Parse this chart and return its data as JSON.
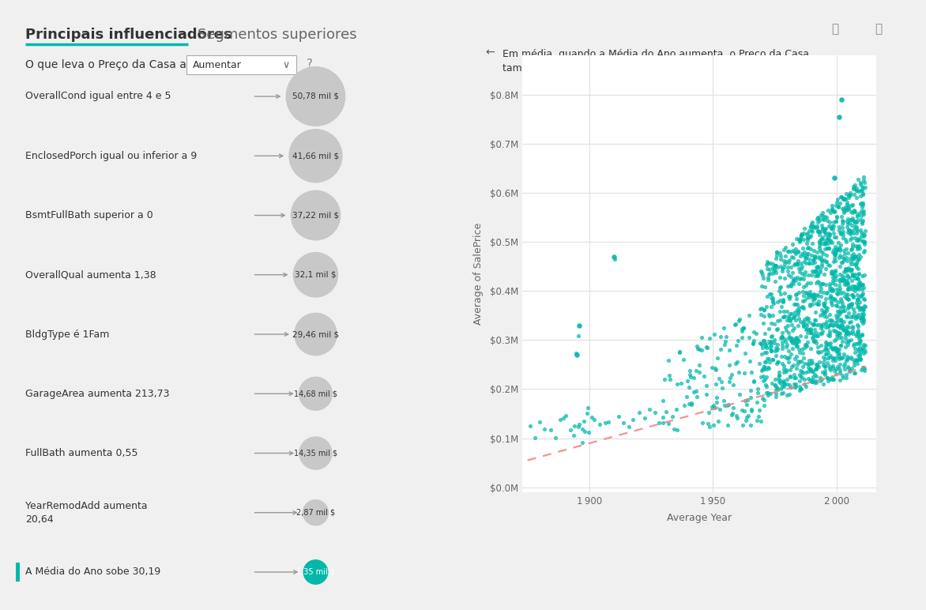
{
  "bg_color": "#f0f0f0",
  "panel_bg": "#ffffff",
  "title_main": "Principais influenciadores",
  "title_secondary": "Segmentos superiores",
  "subtitle": "O que leva o Preço da Casa a",
  "dropdown_text": "Aumentar",
  "question_mark": "?",
  "teal_color": "#01b8aa",
  "gray_bubble": "#c8c8c8",
  "text_color": "#333333",
  "light_text": "#666666",
  "influencers": [
    {
      "label": "OverallCond igual entre 4 e 5",
      "value": "50,78 mil $",
      "size": 1.0
    },
    {
      "label": "EnclosedPorch igual ou inferior a 9",
      "value": "41,66 mil $",
      "size": 0.9
    },
    {
      "label": "BsmtFullBath superior a 0",
      "value": "37,22 mil $",
      "size": 0.84
    },
    {
      "label": "OverallQual aumenta 1,38",
      "value": "32,1 mil $",
      "size": 0.76
    },
    {
      "label": "BldgType é 1Fam",
      "value": "29,46 mil $",
      "size": 0.72
    },
    {
      "label": "GarageArea aumenta 213,73",
      "value": "14,68 mil $",
      "size": 0.57
    },
    {
      "label": "FullBath aumenta 0,55",
      "value": "14,35 mil $",
      "size": 0.56
    },
    {
      "label": "YearRemodAdd aumenta\n20,64",
      "value": "2,87 mil $",
      "size": 0.44
    },
    {
      "label": "A Média do Ano sobe 30,19",
      "value": "1,35 mil $",
      "size": 0.42,
      "highlighted": true
    }
  ],
  "scatter_title": "Em média, quando a Média do Ano aumenta, o Preço da Casa\ntambém aumenta.",
  "scatter_xlabel": "Average Year",
  "scatter_ylabel": "Average of SalePrice",
  "scatter_dot_color": "#01b8aa",
  "scatter_trend_color": "#f08080",
  "scatter_yticks": [
    0.0,
    0.1,
    0.2,
    0.3,
    0.4,
    0.5,
    0.6,
    0.7,
    0.8
  ],
  "scatter_ytick_labels": [
    "$0.0M",
    "$0.1M",
    "$0.2M",
    "$0.3M",
    "$0.4M",
    "$0.5M",
    "$0.6M",
    "$0.7M",
    "$0.8M"
  ],
  "scatter_xticks": [
    1900,
    1950,
    2000
  ]
}
